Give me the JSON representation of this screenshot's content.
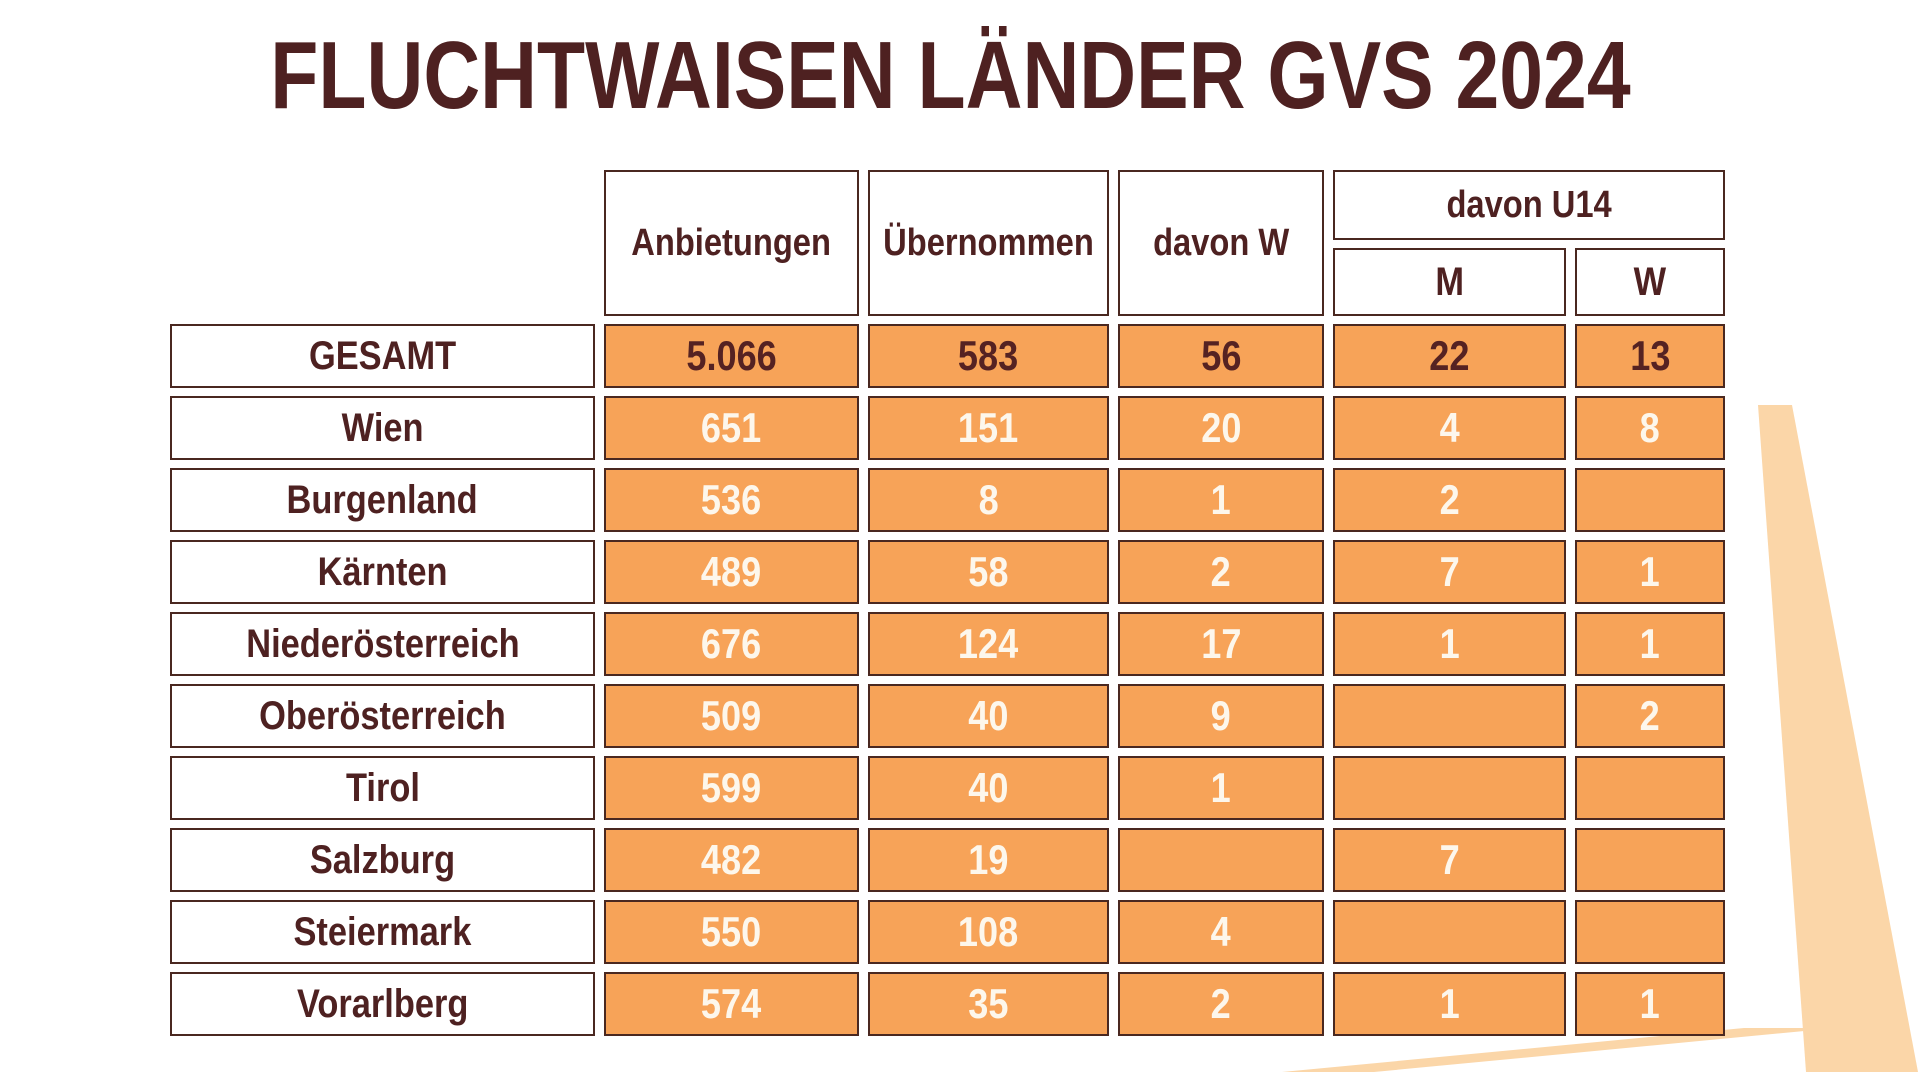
{
  "title": "FLUCHTWAISEN LÄNDER GVS 2024",
  "colors": {
    "accent_orange": "#f7a358",
    "maroon_text": "#4e2121",
    "cell_border": "#4a2820",
    "value_text_light": "#fdf7ec",
    "watermark_orange": "#fbd6a8"
  },
  "chart_data": {
    "type": "table",
    "title": "FLUCHTWAISEN LÄNDER GVS 2024",
    "header": {
      "col1": "Anbietungen",
      "col2": "Übernommen",
      "col3": "davon W",
      "group": "davon U14",
      "sub_m": "M",
      "sub_w": "W"
    },
    "rows": [
      {
        "label": "GESAMT",
        "values": [
          "5.066",
          "583",
          "56",
          "22",
          "13"
        ],
        "emphasis": true
      },
      {
        "label": "Wien",
        "values": [
          "651",
          "151",
          "20",
          "4",
          "8"
        ],
        "emphasis": false
      },
      {
        "label": "Burgenland",
        "values": [
          "536",
          "8",
          "1",
          "2",
          ""
        ],
        "emphasis": false
      },
      {
        "label": "Kärnten",
        "values": [
          "489",
          "58",
          "2",
          "7",
          "1"
        ],
        "emphasis": false
      },
      {
        "label": "Niederösterreich",
        "values": [
          "676",
          "124",
          "17",
          "1",
          "1"
        ],
        "emphasis": false
      },
      {
        "label": "Oberösterreich",
        "values": [
          "509",
          "40",
          "9",
          "",
          "2"
        ],
        "emphasis": false
      },
      {
        "label": "Tirol",
        "values": [
          "599",
          "40",
          "1",
          "",
          ""
        ],
        "emphasis": false
      },
      {
        "label": "Salzburg",
        "values": [
          "482",
          "19",
          "",
          "7",
          ""
        ],
        "emphasis": false
      },
      {
        "label": "Steiermark",
        "values": [
          "550",
          "108",
          "4",
          "",
          ""
        ],
        "emphasis": false
      },
      {
        "label": "Vorarlberg",
        "values": [
          "574",
          "35",
          "2",
          "1",
          "1"
        ],
        "emphasis": false
      }
    ]
  }
}
